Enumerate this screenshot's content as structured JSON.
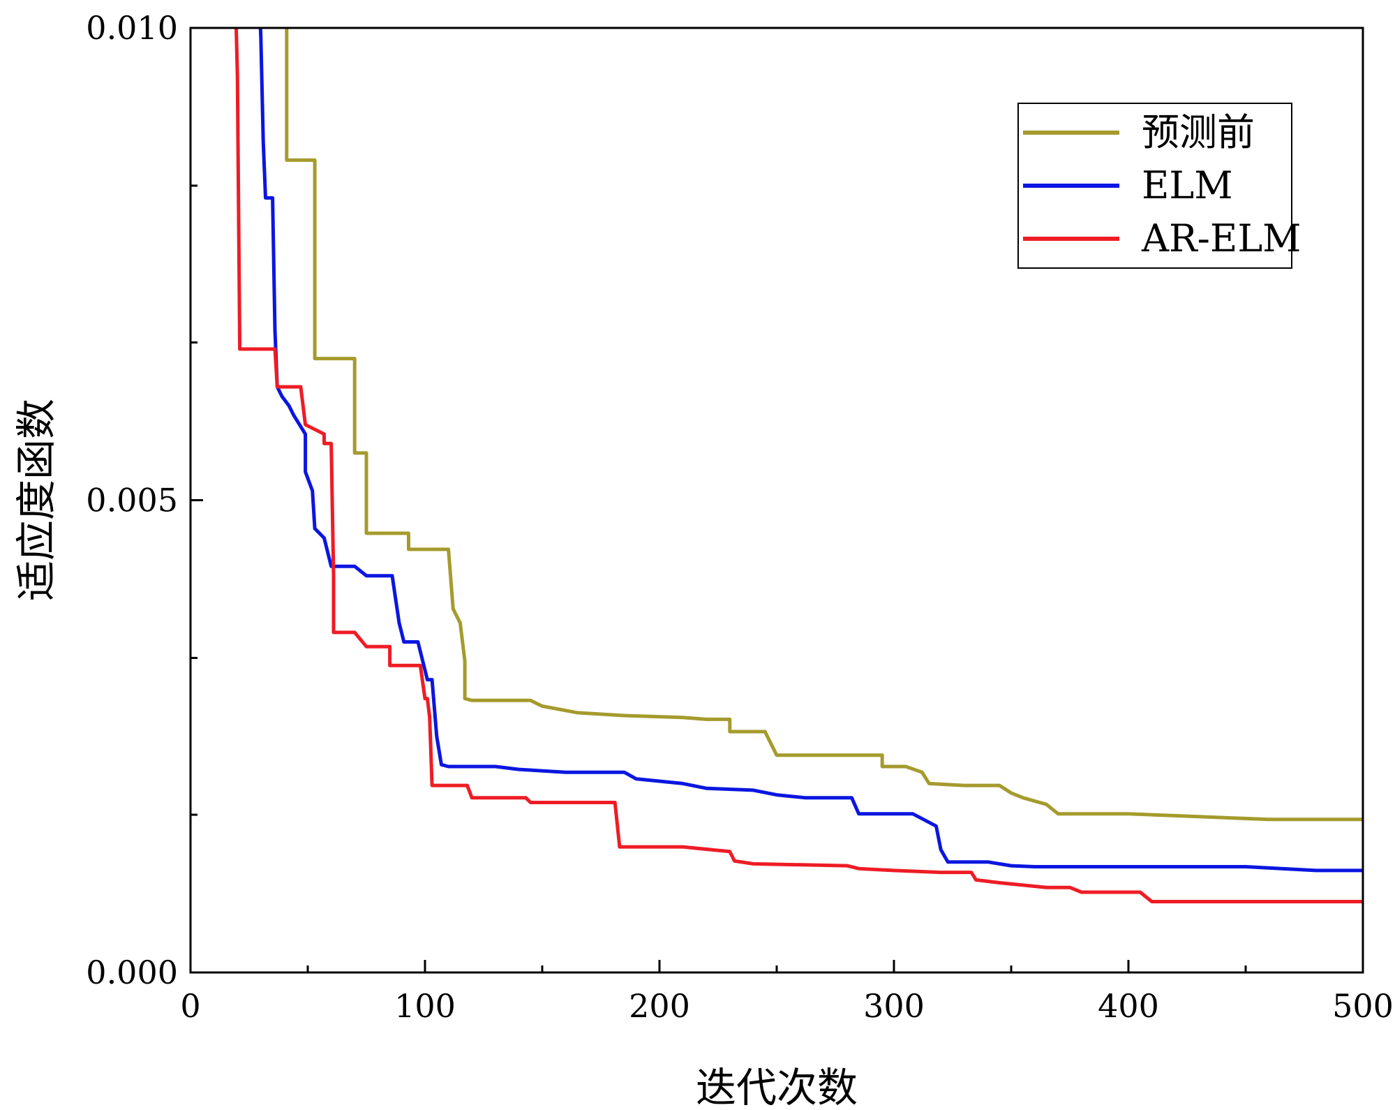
{
  "chart_data": {
    "type": "line",
    "xlabel": "迭代次数",
    "ylabel": "适应度函数",
    "xlim": [
      0,
      500
    ],
    "ylim": [
      0,
      0.01
    ],
    "x_ticks": [
      0,
      100,
      200,
      300,
      400,
      500
    ],
    "x_tick_labels": [
      "0",
      "100",
      "200",
      "300",
      "400",
      "500"
    ],
    "y_ticks": [
      0,
      0.005,
      0.01
    ],
    "y_tick_labels": [
      "0.000",
      "0.005",
      "0.010"
    ],
    "x_minor_ticks": [
      50,
      150,
      250,
      350,
      450
    ],
    "y_minor_ticks": [
      0.00167,
      0.00333,
      0.00667,
      0.00833
    ],
    "legend_position": "top-right",
    "series": [
      {
        "name": "预测前",
        "color": "#a59b2d",
        "points": [
          [
            41,
            0.0105
          ],
          [
            41,
            0.0086
          ],
          [
            53,
            0.0086
          ],
          [
            53,
            0.0065
          ],
          [
            70,
            0.0065
          ],
          [
            70,
            0.0055
          ],
          [
            75,
            0.0055
          ],
          [
            75,
            0.00465
          ],
          [
            93,
            0.00465
          ],
          [
            93,
            0.00448
          ],
          [
            110,
            0.00448
          ],
          [
            112,
            0.00385
          ],
          [
            115,
            0.0037
          ],
          [
            117,
            0.0033
          ],
          [
            117,
            0.0029
          ],
          [
            120,
            0.00288
          ],
          [
            145,
            0.00288
          ],
          [
            150,
            0.00282
          ],
          [
            165,
            0.00275
          ],
          [
            185,
            0.00272
          ],
          [
            210,
            0.0027
          ],
          [
            220,
            0.00268
          ],
          [
            230,
            0.00268
          ],
          [
            230,
            0.00255
          ],
          [
            245,
            0.00255
          ],
          [
            250,
            0.0023
          ],
          [
            270,
            0.0023
          ],
          [
            295,
            0.0023
          ],
          [
            295,
            0.00218
          ],
          [
            305,
            0.00218
          ],
          [
            312,
            0.00212
          ],
          [
            315,
            0.002
          ],
          [
            330,
            0.00198
          ],
          [
            345,
            0.00198
          ],
          [
            350,
            0.0019
          ],
          [
            355,
            0.00185
          ],
          [
            365,
            0.00178
          ],
          [
            370,
            0.00168
          ],
          [
            400,
            0.00168
          ],
          [
            430,
            0.00165
          ],
          [
            460,
            0.00162
          ],
          [
            500,
            0.00162
          ]
        ]
      },
      {
        "name": "ELM",
        "color": "#0b16e0",
        "points": [
          [
            29,
            0.0105
          ],
          [
            30,
            0.0099
          ],
          [
            31,
            0.0088
          ],
          [
            32,
            0.0082
          ],
          [
            35,
            0.0082
          ],
          [
            36,
            0.0068
          ],
          [
            37,
            0.0062
          ],
          [
            39,
            0.0061
          ],
          [
            42,
            0.006
          ],
          [
            44,
            0.0059
          ],
          [
            49,
            0.0057
          ],
          [
            49,
            0.0053
          ],
          [
            52,
            0.0051
          ],
          [
            53,
            0.0047
          ],
          [
            57,
            0.0046
          ],
          [
            60,
            0.0043
          ],
          [
            70,
            0.0043
          ],
          [
            75,
            0.0042
          ],
          [
            86,
            0.0042
          ],
          [
            89,
            0.0037
          ],
          [
            91,
            0.0035
          ],
          [
            97,
            0.0035
          ],
          [
            101,
            0.0031
          ],
          [
            103,
            0.0031
          ],
          [
            105,
            0.0025
          ],
          [
            107,
            0.0022
          ],
          [
            110,
            0.00218
          ],
          [
            130,
            0.00218
          ],
          [
            140,
            0.00215
          ],
          [
            160,
            0.00212
          ],
          [
            185,
            0.00212
          ],
          [
            190,
            0.00205
          ],
          [
            210,
            0.002
          ],
          [
            220,
            0.00195
          ],
          [
            240,
            0.00193
          ],
          [
            250,
            0.00188
          ],
          [
            262,
            0.00185
          ],
          [
            282,
            0.00185
          ],
          [
            285,
            0.00168
          ],
          [
            308,
            0.00168
          ],
          [
            318,
            0.00155
          ],
          [
            320,
            0.0013
          ],
          [
            323,
            0.00117
          ],
          [
            340,
            0.00117
          ],
          [
            350,
            0.00113
          ],
          [
            360,
            0.00112
          ],
          [
            380,
            0.00112
          ],
          [
            450,
            0.00112
          ],
          [
            480,
            0.00108
          ],
          [
            500,
            0.00108
          ]
        ]
      },
      {
        "name": "AR-ELM",
        "color": "#ee1c25",
        "points": [
          [
            19,
            0.0105
          ],
          [
            20,
            0.0095
          ],
          [
            21,
            0.0066
          ],
          [
            36,
            0.0066
          ],
          [
            37,
            0.0062
          ],
          [
            47,
            0.0062
          ],
          [
            49,
            0.0058
          ],
          [
            57,
            0.0057
          ],
          [
            57,
            0.0056
          ],
          [
            60,
            0.0056
          ],
          [
            61,
            0.0042
          ],
          [
            61,
            0.0036
          ],
          [
            70,
            0.0036
          ],
          [
            75,
            0.00345
          ],
          [
            85,
            0.00345
          ],
          [
            85,
            0.00325
          ],
          [
            98,
            0.00325
          ],
          [
            100,
            0.0029
          ],
          [
            101,
            0.0029
          ],
          [
            102,
            0.0027
          ],
          [
            103,
            0.00198
          ],
          [
            118,
            0.00198
          ],
          [
            120,
            0.00185
          ],
          [
            143,
            0.00185
          ],
          [
            145,
            0.0018
          ],
          [
            181,
            0.0018
          ],
          [
            183,
            0.00133
          ],
          [
            210,
            0.00133
          ],
          [
            230,
            0.00128
          ],
          [
            232,
            0.00118
          ],
          [
            240,
            0.00115
          ],
          [
            280,
            0.00113
          ],
          [
            285,
            0.0011
          ],
          [
            300,
            0.00108
          ],
          [
            320,
            0.00106
          ],
          [
            333,
            0.00106
          ],
          [
            335,
            0.00098
          ],
          [
            345,
            0.00095
          ],
          [
            365,
            0.0009
          ],
          [
            375,
            0.0009
          ],
          [
            380,
            0.00085
          ],
          [
            405,
            0.00085
          ],
          [
            410,
            0.00075
          ],
          [
            450,
            0.00075
          ],
          [
            500,
            0.00075
          ]
        ]
      }
    ]
  }
}
